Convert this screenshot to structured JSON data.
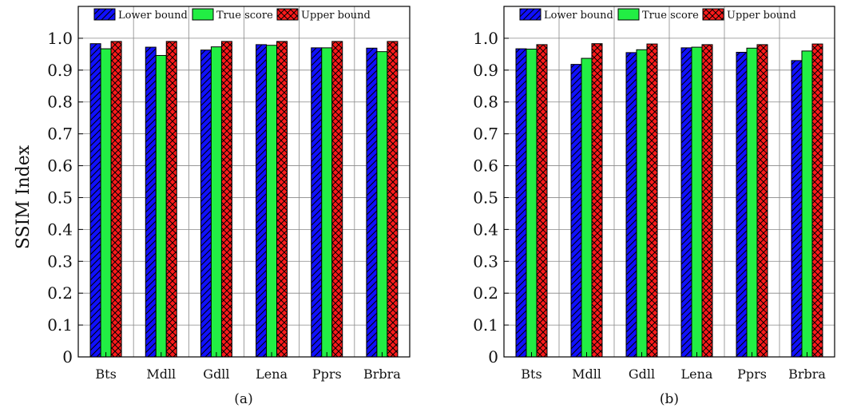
{
  "y_axis_label": "SSIM Index",
  "colors": {
    "lower_bound": "#1010ff",
    "true_score": "#22ee44",
    "upper_bound": "#ff1a1a",
    "grid": "#888888",
    "axis": "#000000"
  },
  "chart_data": [
    {
      "type": "bar",
      "subplot_label": "(a)",
      "categories": [
        "Bts",
        "Mdll",
        "Gdll",
        "Lena",
        "Pprs",
        "Brbra"
      ],
      "series": [
        {
          "name": "Lower bound",
          "pattern": "diagonal-hatch",
          "values": [
            0.983,
            0.972,
            0.963,
            0.98,
            0.97,
            0.969
          ]
        },
        {
          "name": "True score",
          "pattern": "solid",
          "values": [
            0.967,
            0.946,
            0.973,
            0.978,
            0.97,
            0.958
          ]
        },
        {
          "name": "Upper bound",
          "pattern": "crosshatch",
          "values": [
            0.99,
            0.99,
            0.99,
            0.99,
            0.99,
            0.99
          ]
        }
      ],
      "yticks": [
        "0",
        "0.1",
        "0.2",
        "0.3",
        "0.4",
        "0.5",
        "0.6",
        "0.7",
        "0.8",
        "0.9",
        "1.0"
      ],
      "ylim": [
        0,
        1.1
      ],
      "grid": true,
      "legend_position": "top"
    },
    {
      "type": "bar",
      "subplot_label": "(b)",
      "categories": [
        "Bts",
        "Mdll",
        "Gdll",
        "Lena",
        "Pprs",
        "Brbra"
      ],
      "series": [
        {
          "name": "Lower bound",
          "pattern": "diagonal-hatch",
          "values": [
            0.967,
            0.918,
            0.955,
            0.97,
            0.956,
            0.93
          ]
        },
        {
          "name": "True score",
          "pattern": "solid",
          "values": [
            0.966,
            0.937,
            0.964,
            0.972,
            0.969,
            0.96
          ]
        },
        {
          "name": "Upper bound",
          "pattern": "crosshatch",
          "values": [
            0.98,
            0.983,
            0.982,
            0.98,
            0.98,
            0.982
          ]
        }
      ],
      "yticks": [
        "0",
        "0.1",
        "0.2",
        "0.3",
        "0.4",
        "0.5",
        "0.6",
        "0.7",
        "0.8",
        "0.9",
        "1.0"
      ],
      "ylim": [
        0,
        1.1
      ],
      "grid": true,
      "legend_position": "top"
    }
  ]
}
